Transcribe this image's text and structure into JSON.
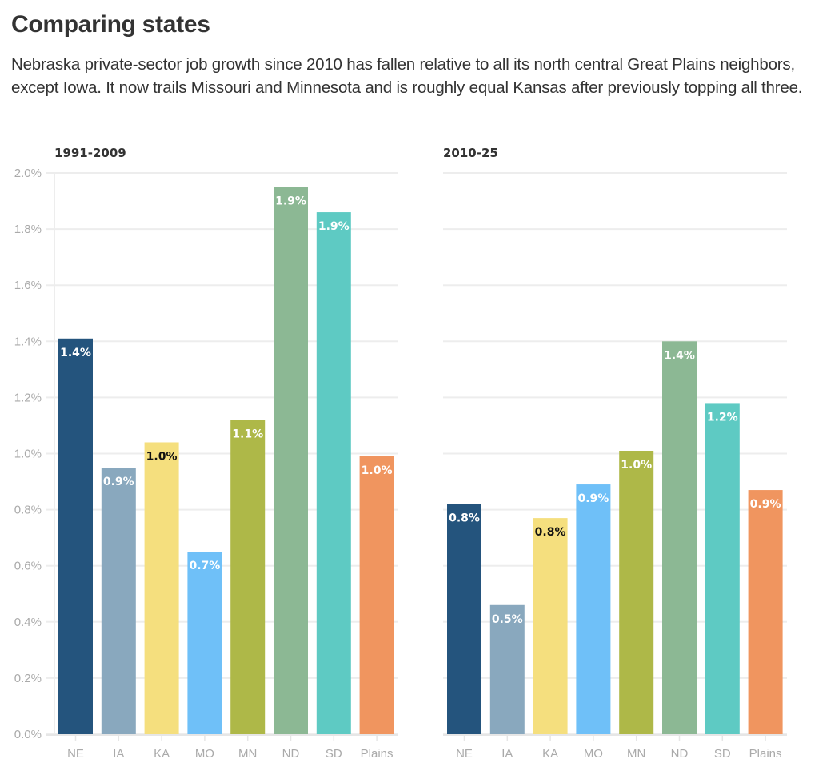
{
  "header": {
    "title": "Comparing states",
    "subtitle": "Nebraska private-sector job growth since 2010 has fallen relative to all its north central Great Plains neighbors, except Iowa. It now trails Missouri and Minnesota and is roughly equal Kansas after previously topping all three."
  },
  "chart_data": {
    "type": "bar",
    "title": "Comparing states",
    "categories": [
      "NE",
      "IA",
      "KA",
      "MO",
      "MN",
      "ND",
      "SD",
      "Plains"
    ],
    "colors": [
      "#24547d",
      "#89a8be",
      "#f5df7e",
      "#6fc0f8",
      "#aeb848",
      "#8cb894",
      "#5ecac3",
      "#f0955f"
    ],
    "label_text_colors": [
      "#ffffff",
      "#ffffff",
      "#111111",
      "#ffffff",
      "#ffffff",
      "#ffffff",
      "#ffffff",
      "#ffffff"
    ],
    "ylim": [
      0,
      2.0
    ],
    "yticks": [
      0.0,
      0.2,
      0.4,
      0.6,
      0.8,
      1.0,
      1.2,
      1.4,
      1.6,
      1.8,
      2.0
    ],
    "ytick_labels": [
      "0.0%",
      "0.2%",
      "0.4%",
      "0.6%",
      "0.8%",
      "1.0%",
      "1.2%",
      "1.4%",
      "1.6%",
      "1.8%",
      "2.0%"
    ],
    "xlabel": "",
    "ylabel": "",
    "grid": true,
    "legend": "none",
    "panels": [
      {
        "name": "1991-2009",
        "values": [
          1.41,
          0.95,
          1.04,
          0.65,
          1.12,
          1.95,
          1.86,
          0.99
        ],
        "data_labels": [
          "1.4%",
          "0.9%",
          "1.0%",
          "0.7%",
          "1.1%",
          "1.9%",
          "1.9%",
          "1.0%"
        ]
      },
      {
        "name": "2010-25",
        "values": [
          0.82,
          0.46,
          0.77,
          0.89,
          1.01,
          1.4,
          1.18,
          0.87
        ],
        "data_labels": [
          "0.8%",
          "0.5%",
          "0.8%",
          "0.9%",
          "1.0%",
          "1.4%",
          "1.2%",
          "0.9%"
        ]
      }
    ]
  }
}
